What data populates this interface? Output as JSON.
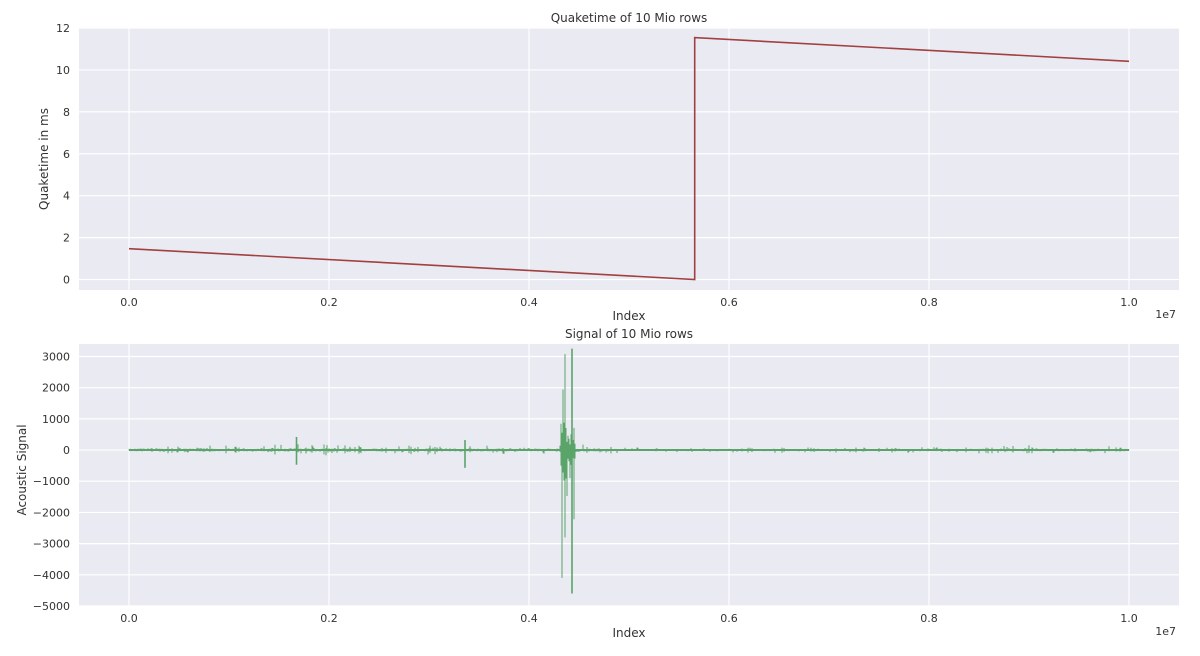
{
  "chart_data": [
    {
      "type": "line",
      "title": "Quaketime of 10 Mio rows",
      "xlabel": "Index",
      "ylabel": "Quaketime in ms",
      "x_offset_label": "1e7",
      "xlim": [
        -0.05,
        1.05
      ],
      "ylim": [
        -0.5,
        12
      ],
      "x_ticks": [
        0.0,
        0.2,
        0.4,
        0.6,
        0.8,
        1.0
      ],
      "x_tick_labels": [
        "0.0",
        "0.2",
        "0.4",
        "0.6",
        "0.8",
        "1.0"
      ],
      "y_ticks": [
        0,
        2,
        4,
        6,
        8,
        10,
        12
      ],
      "y_tick_labels": [
        "0",
        "2",
        "4",
        "6",
        "8",
        "10",
        "12"
      ],
      "grid": true,
      "color": "#a14040",
      "series": [
        {
          "x": [
            0.0,
            0.5657,
            0.5657,
            1.0
          ],
          "y": [
            1.47,
            0.0,
            11.54,
            10.41
          ]
        }
      ]
    },
    {
      "type": "line",
      "title": "Signal of 10 Mio rows",
      "xlabel": "Index",
      "ylabel": "Acoustic Signal",
      "x_offset_label": "1e7",
      "xlim": [
        -0.05,
        1.05
      ],
      "ylim": [
        -5000,
        3400
      ],
      "x_ticks": [
        0.0,
        0.2,
        0.4,
        0.6,
        0.8,
        1.0
      ],
      "x_tick_labels": [
        "0.0",
        "0.2",
        "0.4",
        "0.6",
        "0.8",
        "1.0"
      ],
      "y_ticks": [
        3000,
        2000,
        1000,
        0,
        -1000,
        -2000,
        -3000,
        -4000,
        -5000
      ],
      "y_tick_labels": [
        "3000",
        "2000",
        "1000",
        "0",
        "−1000",
        "−2000",
        "−3000",
        "−4000",
        "−5000"
      ],
      "grid": true,
      "color": "#5aa469",
      "baseline": 0,
      "series": [
        {
          "x": [
            0.0,
            0.017,
            0.04,
            0.05,
            0.09,
            0.12,
            0.15,
            0.2,
            0.24,
            0.29,
            0.31,
            0.33,
            0.4,
            0.42,
            0.443,
            0.45,
            0.47,
            0.5,
            0.57,
            0.6,
            0.66,
            0.7,
            0.77,
            0.81,
            0.86,
            0.893,
            0.92,
            0.95,
            0.97,
            1.0
          ],
          "y_max": [
            120,
            180,
            150,
            200,
            140,
            160,
            200,
            180,
            150,
            160,
            170,
            160,
            140,
            160,
            3250,
            180,
            160,
            100,
            60,
            80,
            120,
            80,
            100,
            90,
            120,
            220,
            100,
            150,
            130,
            120
          ],
          "y_min": [
            -120,
            -150,
            -150,
            -200,
            -140,
            -160,
            -150,
            -170,
            -150,
            -140,
            -150,
            -150,
            -130,
            -140,
            -4600,
            -170,
            -150,
            -90,
            -60,
            -80,
            -120,
            -80,
            -100,
            -90,
            -110,
            -120,
            -100,
            -130,
            -120,
            -110
          ]
        }
      ],
      "extremes": [
        {
          "x": 0.1675,
          "y_max": 420,
          "y_min": -470
        },
        {
          "x": 0.336,
          "y_max": 320,
          "y_min": -570
        }
      ]
    }
  ]
}
